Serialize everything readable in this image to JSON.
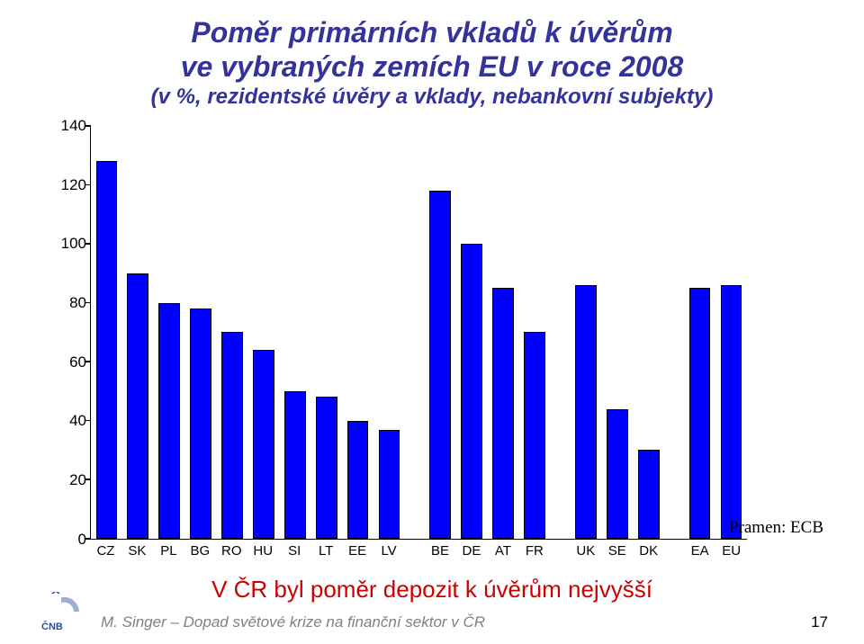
{
  "title": {
    "line1": "Poměr primárních vkladů k úvěrům",
    "line2": "ve vybraných zemích EU v roce 2008",
    "line3": "(v %, rezidentské úvěry a vklady, nebankovní subjekty)",
    "color": "#333399",
    "fontsize_main": 32,
    "fontsize_sub": 24
  },
  "chart": {
    "type": "bar",
    "ylim": [
      0,
      140
    ],
    "ytick_step": 20,
    "yticks": [
      0,
      20,
      40,
      60,
      80,
      100,
      120,
      140
    ],
    "bar_color": "#0000ff",
    "bar_border_color": "#000000",
    "axis_color": "#000000",
    "background_color": "#ffffff",
    "label_fontsize": 17,
    "xlabel_fontsize": 15,
    "bar_width": 0.68,
    "groups": [
      {
        "gap_before": false,
        "bars": [
          {
            "label": "CZ",
            "value": 128
          },
          {
            "label": "SK",
            "value": 90
          },
          {
            "label": "PL",
            "value": 80
          },
          {
            "label": "BG",
            "value": 78
          },
          {
            "label": "RO",
            "value": 70
          },
          {
            "label": "HU",
            "value": 64
          },
          {
            "label": "SI",
            "value": 50
          },
          {
            "label": "LT",
            "value": 48
          },
          {
            "label": "EE",
            "value": 40
          },
          {
            "label": "LV",
            "value": 37
          }
        ]
      },
      {
        "gap_before": true,
        "bars": [
          {
            "label": "BE",
            "value": 118
          },
          {
            "label": "DE",
            "value": 100
          },
          {
            "label": "AT",
            "value": 85
          },
          {
            "label": "FR",
            "value": 70
          }
        ]
      },
      {
        "gap_before": true,
        "bars": [
          {
            "label": "UK",
            "value": 86
          },
          {
            "label": "SE",
            "value": 44
          },
          {
            "label": "DK",
            "value": 30
          }
        ]
      },
      {
        "gap_before": true,
        "bars": [
          {
            "label": "EA",
            "value": 85
          },
          {
            "label": "EU",
            "value": 86
          }
        ]
      }
    ]
  },
  "source": {
    "label": "Pramen: ECB",
    "fontsize": 19
  },
  "conclusion": {
    "text": "V ČR byl poměr depozit k úvěrům nejvyšší",
    "color": "#cc0000",
    "fontsize": 26
  },
  "footer": {
    "text": "M. Singer – Dopad světové krize na finanční sektor v ČR",
    "page": "17",
    "text_color": "#808080",
    "fontsize": 17
  }
}
